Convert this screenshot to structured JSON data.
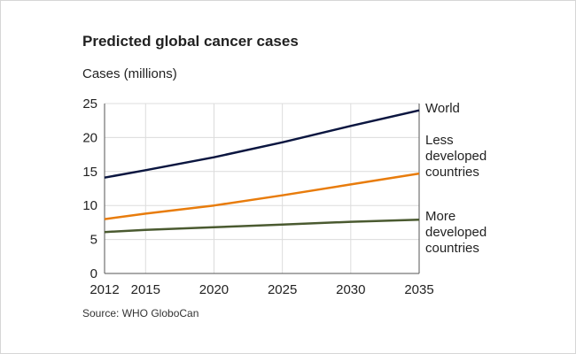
{
  "chart_data": {
    "type": "line",
    "title": "Predicted global cancer cases",
    "ylabel": "Cases (millions)",
    "xlabel": "",
    "source": "Source: WHO GloboCan",
    "x": [
      2012,
      2015,
      2020,
      2025,
      2030,
      2035
    ],
    "xlim": [
      2012,
      2035
    ],
    "ylim": [
      0,
      25
    ],
    "yticks": [
      0,
      5,
      10,
      15,
      20,
      25
    ],
    "xticks": [
      2012,
      2015,
      2020,
      2025,
      2030,
      2035
    ],
    "grid": true,
    "legend": "direct labels at right end of lines",
    "series": [
      {
        "name": "World",
        "label_lines": [
          "World"
        ],
        "color": "#0b1640",
        "values": [
          14.1,
          15.2,
          17.1,
          19.3,
          21.7,
          24.0
        ]
      },
      {
        "name": "Less developed countries",
        "label_lines": [
          "Less",
          "developed",
          "countries"
        ],
        "color": "#e87c0c",
        "values": [
          8.0,
          8.8,
          10.0,
          11.5,
          13.1,
          14.7
        ]
      },
      {
        "name": "More developed countries",
        "label_lines": [
          "More",
          "developed",
          "countries"
        ],
        "color": "#4a5a30",
        "values": [
          6.1,
          6.4,
          6.8,
          7.2,
          7.6,
          7.9
        ]
      }
    ]
  }
}
